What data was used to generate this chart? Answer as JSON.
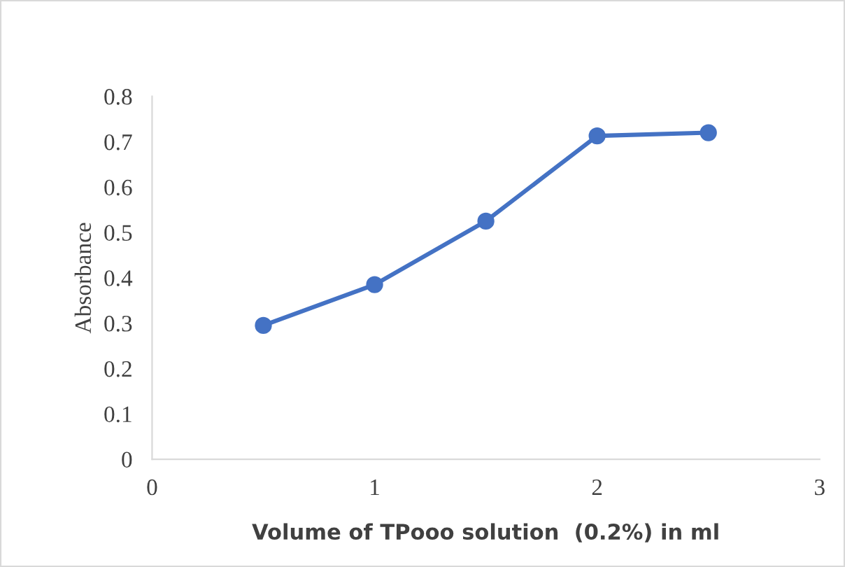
{
  "chart_data": {
    "type": "line",
    "xlabel": "Volume of TPooo solution  (0.2%) in ml",
    "ylabel": "Absorbance",
    "x": [
      0.5,
      1,
      1.5,
      2,
      2.5
    ],
    "series": [
      {
        "color": "#4472c4",
        "values": [
          0.295,
          0.385,
          0.525,
          0.713,
          0.72
        ]
      }
    ],
    "xlim": [
      0,
      3
    ],
    "xticks": [
      0,
      1,
      2,
      3
    ],
    "ylim": [
      0,
      0.8
    ],
    "yticks": [
      0,
      0.1,
      0.2,
      0.3,
      0.4,
      0.5,
      0.6,
      0.7,
      0.8
    ],
    "marker": "circle",
    "line_style": "solid",
    "grid": false,
    "legend": false
  }
}
